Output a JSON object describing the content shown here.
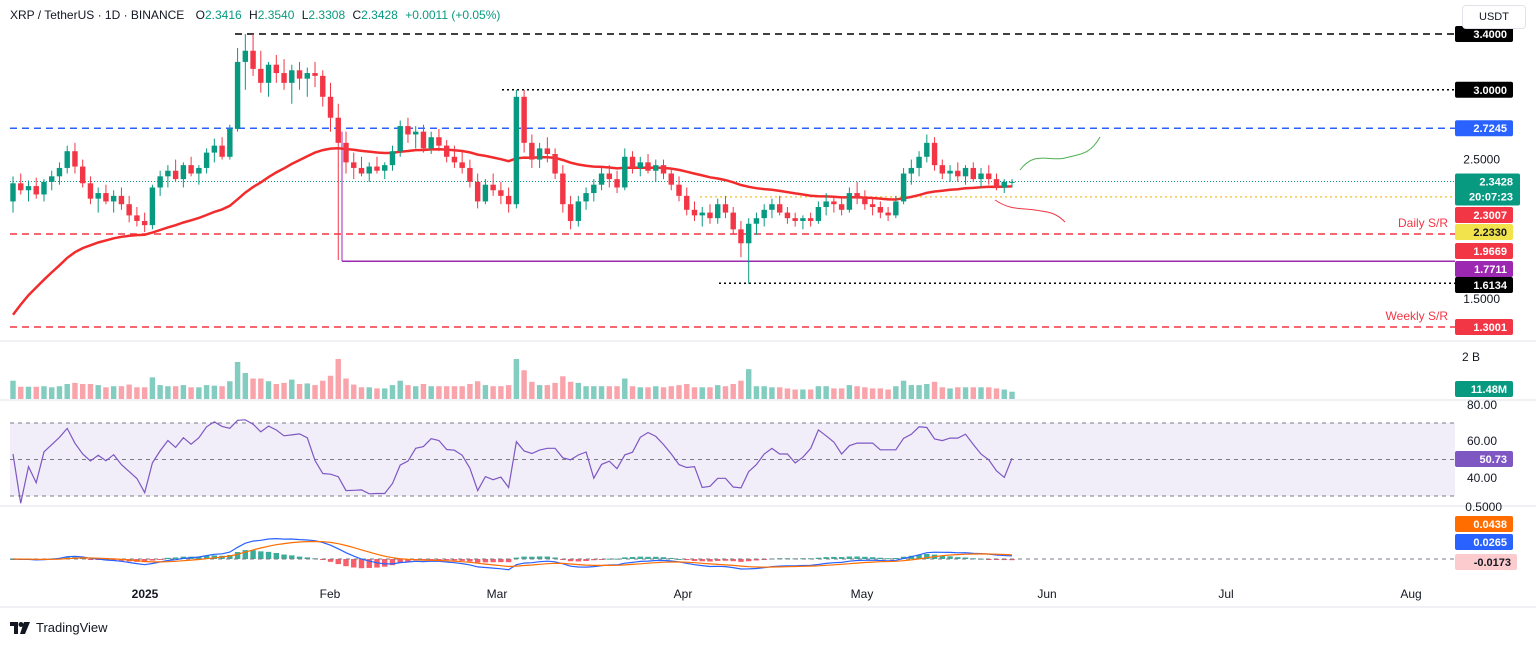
{
  "header": {
    "pair": "XRP / TetherUS · 1D · BINANCE",
    "o_label": "O",
    "o": "2.3416",
    "h_label": "H",
    "h": "2.3540",
    "l_label": "L",
    "l": "2.3308",
    "c_label": "C",
    "c": "2.3428",
    "change": "+0.0011 (+0.05%)"
  },
  "currency_button": "USDT",
  "brand": "TradingView",
  "colors": {
    "up": "#089981",
    "down": "#f23645",
    "ema": "#f22c2c",
    "rsi": "#7e57c2",
    "macd": "#2962ff",
    "signal": "#ff6d00",
    "blue_level": "#2962ff",
    "purple_level": "#9c27b0",
    "yellow_level": "#f2c94c"
  },
  "chart_data": {
    "type": "candlestick",
    "price_scale_labels": [
      "2.5000",
      "1.5000"
    ],
    "x_labels": [
      "2025",
      "Feb",
      "Mar",
      "Apr",
      "May",
      "Jun",
      "Jul",
      "Aug"
    ],
    "levels": [
      {
        "value": 3.4,
        "label": "3.4000",
        "style": "dashed",
        "color": "#000000"
      },
      {
        "value": 3.0,
        "label": "3.0000",
        "style": "dotted",
        "color": "#000000"
      },
      {
        "value": 2.7245,
        "label": "2.7245",
        "style": "dashed",
        "color": "#2962ff"
      },
      {
        "value": 2.3428,
        "label": "2.3428",
        "sublabel": "20:07:23",
        "style": "dotted",
        "color": "#089981"
      },
      {
        "value": 2.3007,
        "label": "2.3007",
        "style": "ema",
        "color": "#f23645"
      },
      {
        "value": 2.233,
        "label": "2.2330",
        "style": "dotted",
        "color": "#f2c94c"
      },
      {
        "value": 1.9669,
        "label": "1.9669",
        "style": "dashed",
        "color": "#f23645",
        "annotation": "Daily S/R"
      },
      {
        "value": 1.7711,
        "label": "1.7711",
        "style": "solid",
        "color": "#9c27b0"
      },
      {
        "value": 1.6134,
        "label": "1.6134",
        "style": "dotted",
        "color": "#000000"
      },
      {
        "value": 1.3001,
        "label": "1.3001",
        "style": "dashed",
        "color": "#f23645",
        "annotation": "Weekly S/R"
      }
    ],
    "candles_ohlc": [
      [
        2.2,
        2.38,
        2.12,
        2.33
      ],
      [
        2.33,
        2.4,
        2.25,
        2.28
      ],
      [
        2.28,
        2.35,
        2.2,
        2.31
      ],
      [
        2.31,
        2.37,
        2.22,
        2.25
      ],
      [
        2.25,
        2.36,
        2.2,
        2.34
      ],
      [
        2.34,
        2.42,
        2.28,
        2.38
      ],
      [
        2.38,
        2.48,
        2.32,
        2.44
      ],
      [
        2.44,
        2.6,
        2.4,
        2.56
      ],
      [
        2.56,
        2.62,
        2.4,
        2.45
      ],
      [
        2.45,
        2.5,
        2.3,
        2.33
      ],
      [
        2.33,
        2.38,
        2.18,
        2.22
      ],
      [
        2.22,
        2.3,
        2.12,
        2.26
      ],
      [
        2.26,
        2.32,
        2.18,
        2.2
      ],
      [
        2.2,
        2.28,
        2.12,
        2.24
      ],
      [
        2.24,
        2.3,
        2.14,
        2.18
      ],
      [
        2.18,
        2.24,
        2.05,
        2.1
      ],
      [
        2.1,
        2.16,
        2.02,
        2.06
      ],
      [
        2.06,
        2.12,
        1.98,
        2.03
      ],
      [
        2.03,
        2.32,
        2.0,
        2.3
      ],
      [
        2.3,
        2.42,
        2.24,
        2.38
      ],
      [
        2.38,
        2.46,
        2.3,
        2.42
      ],
      [
        2.42,
        2.5,
        2.34,
        2.36
      ],
      [
        2.36,
        2.48,
        2.3,
        2.46
      ],
      [
        2.46,
        2.52,
        2.38,
        2.4
      ],
      [
        2.4,
        2.46,
        2.32,
        2.44
      ],
      [
        2.44,
        2.58,
        2.4,
        2.55
      ],
      [
        2.55,
        2.65,
        2.48,
        2.6
      ],
      [
        2.6,
        2.66,
        2.5,
        2.52
      ],
      [
        2.52,
        2.75,
        2.5,
        2.72
      ],
      [
        2.72,
        3.3,
        2.7,
        3.2
      ],
      [
        3.2,
        3.4,
        3.0,
        3.28
      ],
      [
        3.28,
        3.4,
        3.1,
        3.15
      ],
      [
        3.15,
        3.28,
        2.98,
        3.05
      ],
      [
        3.05,
        3.2,
        2.95,
        3.18
      ],
      [
        3.18,
        3.25,
        3.05,
        3.12
      ],
      [
        3.12,
        3.22,
        3.0,
        3.05
      ],
      [
        3.05,
        3.18,
        2.9,
        3.14
      ],
      [
        3.14,
        3.2,
        3.0,
        3.08
      ],
      [
        3.08,
        3.16,
        2.95,
        3.12
      ],
      [
        3.12,
        3.2,
        3.02,
        3.1
      ],
      [
        3.1,
        3.14,
        2.88,
        2.95
      ],
      [
        2.95,
        3.05,
        2.7,
        2.8
      ],
      [
        2.8,
        2.9,
        1.78,
        2.62
      ],
      [
        2.62,
        2.7,
        2.4,
        2.48
      ],
      [
        2.48,
        2.55,
        2.36,
        2.44
      ],
      [
        2.44,
        2.52,
        2.38,
        2.4
      ],
      [
        2.4,
        2.48,
        2.34,
        2.45
      ],
      [
        2.45,
        2.52,
        2.4,
        2.42
      ],
      [
        2.42,
        2.48,
        2.36,
        2.46
      ],
      [
        2.46,
        2.6,
        2.42,
        2.56
      ],
      [
        2.56,
        2.78,
        2.52,
        2.74
      ],
      [
        2.74,
        2.8,
        2.62,
        2.68
      ],
      [
        2.68,
        2.74,
        2.58,
        2.7
      ],
      [
        2.7,
        2.75,
        2.55,
        2.58
      ],
      [
        2.58,
        2.7,
        2.54,
        2.66
      ],
      [
        2.66,
        2.72,
        2.56,
        2.6
      ],
      [
        2.6,
        2.64,
        2.48,
        2.52
      ],
      [
        2.52,
        2.6,
        2.44,
        2.48
      ],
      [
        2.48,
        2.56,
        2.4,
        2.44
      ],
      [
        2.44,
        2.5,
        2.3,
        2.34
      ],
      [
        2.34,
        2.4,
        2.15,
        2.2
      ],
      [
        2.2,
        2.36,
        2.18,
        2.32
      ],
      [
        2.32,
        2.4,
        2.24,
        2.28
      ],
      [
        2.28,
        2.34,
        2.18,
        2.24
      ],
      [
        2.24,
        2.3,
        2.12,
        2.18
      ],
      [
        2.18,
        3.0,
        2.15,
        2.95
      ],
      [
        2.95,
        3.0,
        2.55,
        2.62
      ],
      [
        2.62,
        2.68,
        2.44,
        2.5
      ],
      [
        2.5,
        2.62,
        2.44,
        2.58
      ],
      [
        2.58,
        2.66,
        2.48,
        2.54
      ],
      [
        2.54,
        2.58,
        2.36,
        2.4
      ],
      [
        2.4,
        2.46,
        2.12,
        2.18
      ],
      [
        2.18,
        2.24,
        2.0,
        2.06
      ],
      [
        2.06,
        2.24,
        2.02,
        2.2
      ],
      [
        2.2,
        2.3,
        2.14,
        2.26
      ],
      [
        2.26,
        2.36,
        2.2,
        2.32
      ],
      [
        2.32,
        2.44,
        2.28,
        2.4
      ],
      [
        2.4,
        2.46,
        2.3,
        2.36
      ],
      [
        2.36,
        2.42,
        2.26,
        2.3
      ],
      [
        2.3,
        2.58,
        2.28,
        2.52
      ],
      [
        2.52,
        2.56,
        2.4,
        2.44
      ],
      [
        2.44,
        2.52,
        2.38,
        2.48
      ],
      [
        2.48,
        2.54,
        2.4,
        2.42
      ],
      [
        2.42,
        2.5,
        2.34,
        2.46
      ],
      [
        2.46,
        2.5,
        2.36,
        2.4
      ],
      [
        2.4,
        2.44,
        2.28,
        2.32
      ],
      [
        2.32,
        2.38,
        2.2,
        2.24
      ],
      [
        2.24,
        2.3,
        2.1,
        2.14
      ],
      [
        2.14,
        2.2,
        2.06,
        2.1
      ],
      [
        2.1,
        2.16,
        2.02,
        2.12
      ],
      [
        2.12,
        2.18,
        2.04,
        2.08
      ],
      [
        2.08,
        2.22,
        2.04,
        2.18
      ],
      [
        2.18,
        2.24,
        2.08,
        2.12
      ],
      [
        2.12,
        2.16,
        1.96,
        2.0
      ],
      [
        2.0,
        2.06,
        1.8,
        1.9
      ],
      [
        1.9,
        2.08,
        1.61,
        2.04
      ],
      [
        2.04,
        2.12,
        1.96,
        2.08
      ],
      [
        2.08,
        2.18,
        2.02,
        2.14
      ],
      [
        2.14,
        2.22,
        2.08,
        2.18
      ],
      [
        2.18,
        2.24,
        2.1,
        2.12
      ],
      [
        2.12,
        2.16,
        2.04,
        2.08
      ],
      [
        2.08,
        2.12,
        2.02,
        2.06
      ],
      [
        2.06,
        2.1,
        2.0,
        2.08
      ],
      [
        2.08,
        2.12,
        2.02,
        2.06
      ],
      [
        2.06,
        2.2,
        2.04,
        2.16
      ],
      [
        2.16,
        2.26,
        2.1,
        2.2
      ],
      [
        2.2,
        2.24,
        2.12,
        2.18
      ],
      [
        2.18,
        2.22,
        2.1,
        2.14
      ],
      [
        2.14,
        2.3,
        2.12,
        2.26
      ],
      [
        2.26,
        2.34,
        2.18,
        2.22
      ],
      [
        2.22,
        2.28,
        2.14,
        2.18
      ],
      [
        2.18,
        2.22,
        2.1,
        2.16
      ],
      [
        2.16,
        2.2,
        2.08,
        2.12
      ],
      [
        2.12,
        2.16,
        2.06,
        2.1
      ],
      [
        2.1,
        2.24,
        2.08,
        2.2
      ],
      [
        2.2,
        2.44,
        2.18,
        2.4
      ],
      [
        2.4,
        2.5,
        2.32,
        2.44
      ],
      [
        2.44,
        2.56,
        2.38,
        2.52
      ],
      [
        2.52,
        2.68,
        2.48,
        2.62
      ],
      [
        2.62,
        2.66,
        2.42,
        2.46
      ],
      [
        2.46,
        2.5,
        2.36,
        2.4
      ],
      [
        2.4,
        2.46,
        2.34,
        2.42
      ],
      [
        2.42,
        2.48,
        2.34,
        2.38
      ],
      [
        2.38,
        2.46,
        2.32,
        2.44
      ],
      [
        2.44,
        2.48,
        2.34,
        2.36
      ],
      [
        2.36,
        2.44,
        2.3,
        2.4
      ],
      [
        2.4,
        2.46,
        2.32,
        2.36
      ],
      [
        2.36,
        2.4,
        2.28,
        2.3
      ],
      [
        2.3,
        2.36,
        2.26,
        2.34
      ],
      [
        2.34,
        2.36,
        2.3,
        2.34
      ]
    ],
    "ema_line": "EMA",
    "volume_label": "11.48M",
    "volume_scale_label": "2 B",
    "rsi": {
      "value_label": "50.73",
      "scale_labels": [
        "80.00",
        "60.00",
        "40.00"
      ],
      "upper": 70,
      "lower": 30,
      "mid": 50
    },
    "macd": {
      "labels": [
        "0.0438",
        "0.0265",
        "-0.0173"
      ],
      "scale_label": "0.5000"
    },
    "annotations": {
      "daily_sr": "Daily S/R",
      "weekly_sr": "Weekly S/R"
    }
  }
}
